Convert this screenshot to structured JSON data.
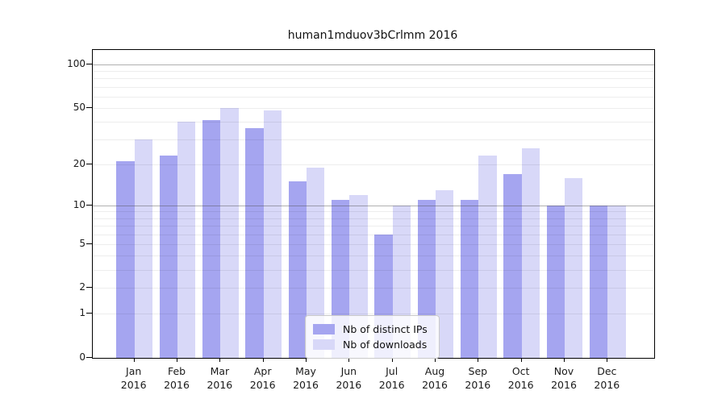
{
  "title": "human1mduov3bCrlmm 2016",
  "chart_data": {
    "type": "bar",
    "title": "human1mduov3bCrlmm 2016",
    "xlabel": "",
    "ylabel": "",
    "y_scale": "log10(1+value)",
    "grid": true,
    "legend_position": "inside-bottom-center",
    "categories": [
      "Jan",
      "Feb",
      "Mar",
      "Apr",
      "May",
      "Jun",
      "Jul",
      "Aug",
      "Sep",
      "Oct",
      "Nov",
      "Dec"
    ],
    "x_year_line": "2016",
    "series": [
      {
        "name": "Nb of distinct IPs",
        "color": "#a5a5f0",
        "values": [
          21,
          23,
          41,
          36,
          15,
          11,
          6,
          11,
          11,
          17,
          10,
          10
        ]
      },
      {
        "name": "Nb of downloads",
        "color": "#d8d8f8",
        "values": [
          30,
          40,
          50,
          48,
          19,
          12,
          10,
          13,
          23,
          26,
          16,
          10
        ]
      }
    ],
    "y_tick_labels": [
      0,
      1,
      2,
      5,
      10,
      20,
      50,
      100
    ],
    "y_gridlines_minor": [
      1,
      2,
      3,
      4,
      5,
      6,
      7,
      8,
      9,
      20,
      30,
      40,
      50,
      60,
      70,
      80,
      90
    ],
    "y_gridlines_major": [
      10,
      100
    ],
    "ylim": [
      0,
      126
    ]
  },
  "legend": {
    "items": [
      {
        "label": "Nb of distinct IPs",
        "color": "#a5a5f0"
      },
      {
        "label": "Nb of downloads",
        "color": "#d8d8f8"
      }
    ]
  }
}
